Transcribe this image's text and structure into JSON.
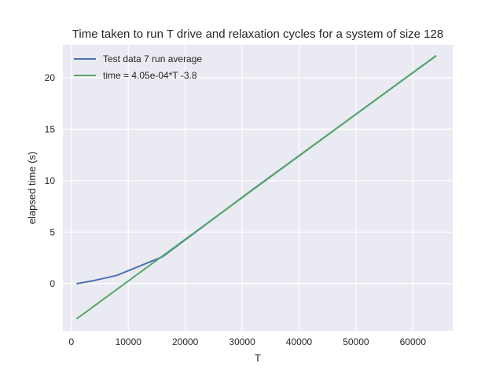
{
  "chart_data": {
    "type": "line",
    "title": "Time taken to run T drive and relaxation cycles for a system of size 128",
    "xlabel": "T",
    "ylabel": "elapsed time (s)",
    "xlim": [
      -1500,
      67000
    ],
    "ylim": [
      -4.6,
      23.2
    ],
    "xticks": [
      0,
      10000,
      20000,
      30000,
      40000,
      50000,
      60000
    ],
    "yticks": [
      0,
      5,
      10,
      15,
      20
    ],
    "grid": true,
    "legend_position": "top-left",
    "series": [
      {
        "name": "Test data 7 run average",
        "color": "#4c72b0",
        "x": [
          1000,
          2000,
          4000,
          8000,
          16000,
          32000,
          64000
        ],
        "y": [
          0.0,
          0.1,
          0.3,
          0.8,
          2.6,
          9.2,
          22.1
        ]
      },
      {
        "name": "time = 4.05e-04*T -3.8",
        "color": "#55a868",
        "x": [
          1000,
          64000
        ],
        "y": [
          -3.395,
          22.12
        ]
      }
    ]
  }
}
